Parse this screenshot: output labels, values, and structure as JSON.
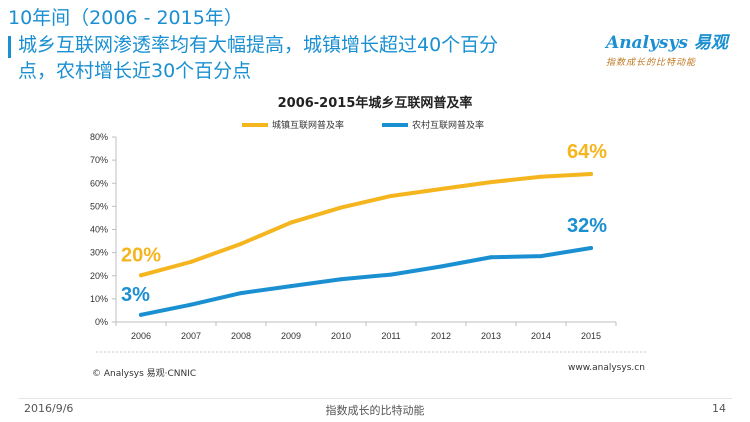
{
  "header": {
    "title_line1": "10年间（2006 - 2015年）",
    "title_line2": "城乡互联网渗透率均有大幅提高，城镇增长超过40个百分",
    "title_line3": "点，农村增长近30个百分点"
  },
  "logo": {
    "text": "Analysys 易观",
    "tagline": "指数成长的比特动能"
  },
  "chart_data": {
    "type": "line",
    "title": "2006-2015年城乡互联网普及率",
    "categories": [
      "2006",
      "2007",
      "2008",
      "2009",
      "2010",
      "2011",
      "2012",
      "2013",
      "2014",
      "2015"
    ],
    "y_ticks": [
      "0%",
      "10%",
      "20%",
      "30%",
      "40%",
      "50%",
      "60%",
      "70%",
      "80%"
    ],
    "ylim": [
      0,
      80
    ],
    "grid": false,
    "legend_position": "top",
    "series": [
      {
        "name": "城镇互联网普及率",
        "color": "#f5b51e",
        "values": [
          20.2,
          26.0,
          33.8,
          43.0,
          49.5,
          54.5,
          57.5,
          60.5,
          62.8,
          64.0
        ],
        "start_label": "20%",
        "end_label": "64%"
      },
      {
        "name": "农村互联网普及率",
        "color": "#1a8fd1",
        "values": [
          3.1,
          7.5,
          12.5,
          15.5,
          18.5,
          20.5,
          24.0,
          28.0,
          28.5,
          32.0
        ],
        "start_label": "3%",
        "end_label": "32%"
      }
    ]
  },
  "source": "© Analysys 易观·CNNIC",
  "url": "www.analysys.cn",
  "footer": {
    "date": "2016/9/6",
    "center": "指数成长的比特动能",
    "page": "14"
  }
}
